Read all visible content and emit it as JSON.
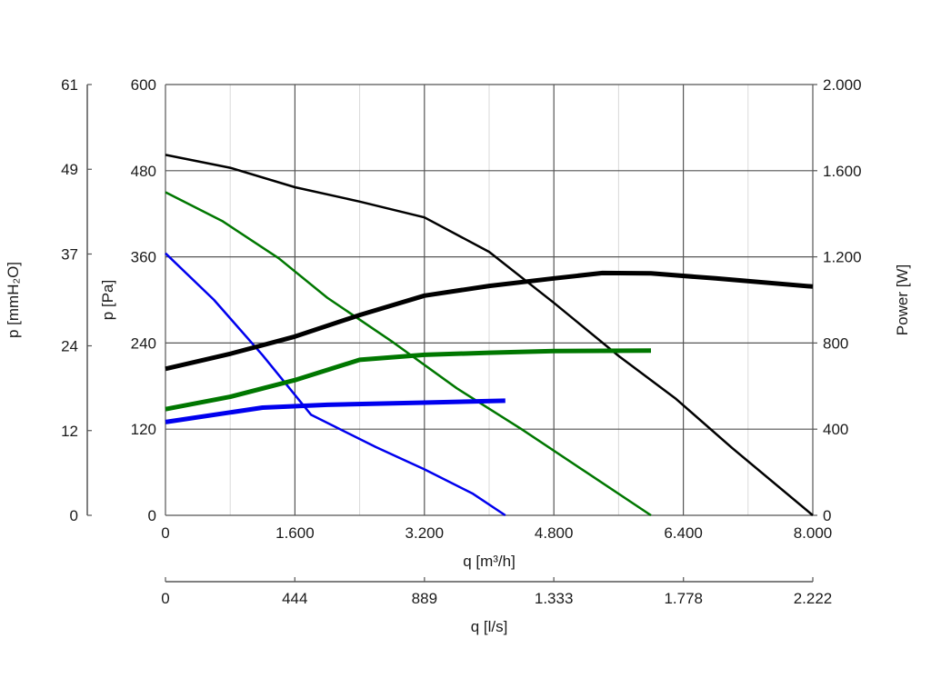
{
  "chart_data": {
    "type": "line",
    "title": "",
    "x_axis": {
      "label": "q [m³/h]",
      "range": [
        0,
        8000
      ],
      "ticks": [
        0,
        1600,
        3200,
        4800,
        6400,
        8000
      ],
      "tick_labels": [
        "0",
        "1.600",
        "3.200",
        "4.800",
        "6.400",
        "8.000"
      ],
      "minor_grid_step": 800
    },
    "x_axis_secondary": {
      "label": "q [l/s]",
      "range": [
        0,
        2222
      ],
      "ticks": [
        0,
        444,
        889,
        1333,
        1778,
        2222
      ],
      "tick_labels": [
        "0",
        "444",
        "889",
        "1.333",
        "1.778",
        "2.222"
      ]
    },
    "y_axis": {
      "label": "p [Pa]",
      "range": [
        0,
        600
      ],
      "ticks": [
        0,
        120,
        240,
        360,
        480,
        600
      ],
      "tick_labels": [
        "0",
        "120",
        "240",
        "360",
        "480",
        "600"
      ]
    },
    "y_axis_outer": {
      "label": "p [mmH₂O]",
      "range": [
        0,
        61
      ],
      "ticks": [
        0,
        12,
        24,
        37,
        49,
        61
      ],
      "tick_labels": [
        "0",
        "12",
        "24",
        "37",
        "49",
        "61"
      ]
    },
    "y_axis_right": {
      "label": "Power [W]",
      "range": [
        0,
        2000
      ],
      "ticks": [
        0,
        400,
        800,
        1200,
        1600,
        2000
      ],
      "tick_labels": [
        "0",
        "400",
        "800",
        "1.200",
        "1.600",
        "2.000"
      ]
    },
    "grid": true,
    "legend": "none",
    "series": [
      {
        "kind": "pressure",
        "axis": "Pa",
        "color": "#000000",
        "points": [
          [
            0,
            502
          ],
          [
            800,
            484
          ],
          [
            1600,
            457
          ],
          [
            2400,
            437
          ],
          [
            3200,
            415
          ],
          [
            4000,
            367
          ],
          [
            4800,
            296
          ],
          [
            5600,
            222
          ],
          [
            6300,
            163
          ],
          [
            7000,
            94
          ],
          [
            8000,
            0
          ]
        ]
      },
      {
        "kind": "pressure",
        "axis": "Pa",
        "color": "#007700",
        "points": [
          [
            0,
            450
          ],
          [
            700,
            410
          ],
          [
            1400,
            358
          ],
          [
            2000,
            303
          ],
          [
            2800,
            242
          ],
          [
            3600,
            177
          ],
          [
            4400,
            120
          ],
          [
            5200,
            60
          ],
          [
            6000,
            0
          ]
        ]
      },
      {
        "kind": "pressure",
        "axis": "Pa",
        "color": "#0000ee",
        "points": [
          [
            0,
            365
          ],
          [
            600,
            300
          ],
          [
            1200,
            223
          ],
          [
            1800,
            140
          ],
          [
            2600,
            95
          ],
          [
            3200,
            64
          ],
          [
            3800,
            30
          ],
          [
            4200,
            0
          ]
        ]
      },
      {
        "kind": "power",
        "axis": "W",
        "color": "#000000",
        "points": [
          [
            0,
            680
          ],
          [
            800,
            750
          ],
          [
            1600,
            830
          ],
          [
            2400,
            930
          ],
          [
            3200,
            1020
          ],
          [
            4000,
            1065
          ],
          [
            4800,
            1100
          ],
          [
            5400,
            1125
          ],
          [
            6000,
            1123
          ],
          [
            6800,
            1100
          ],
          [
            8000,
            1062
          ]
        ]
      },
      {
        "kind": "power",
        "axis": "W",
        "color": "#007700",
        "points": [
          [
            0,
            493
          ],
          [
            800,
            550
          ],
          [
            1600,
            628
          ],
          [
            2400,
            722
          ],
          [
            3200,
            745
          ],
          [
            4000,
            755
          ],
          [
            4800,
            763
          ],
          [
            6000,
            765
          ]
        ]
      },
      {
        "kind": "power",
        "axis": "W",
        "color": "#0000ee",
        "points": [
          [
            0,
            433
          ],
          [
            1200,
            500
          ],
          [
            2000,
            513
          ],
          [
            3200,
            523
          ],
          [
            4200,
            532
          ]
        ]
      }
    ]
  }
}
